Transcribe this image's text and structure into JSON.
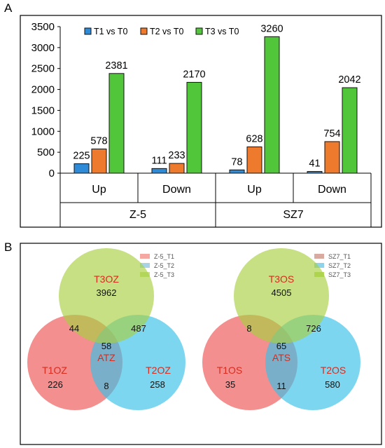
{
  "panel_a": {
    "letter": "A"
  },
  "panel_b": {
    "letter": "B"
  },
  "chart_data": {
    "type": "bar",
    "title": "",
    "xlabel": "",
    "ylabel": "",
    "ylim": [
      0,
      3500
    ],
    "yticks": [
      0,
      500,
      1000,
      1500,
      2000,
      2500,
      3000,
      3500
    ],
    "grid": false,
    "legend_position": "top",
    "categories": [
      "Up",
      "Down",
      "Up",
      "Down"
    ],
    "groups": [
      {
        "label": "Z-5",
        "categories": [
          0,
          1
        ]
      },
      {
        "label": "SZ7",
        "categories": [
          2,
          3
        ]
      }
    ],
    "series": [
      {
        "name": "T1 vs T0",
        "color": "#2e8bd8",
        "values": [
          225,
          111,
          78,
          41
        ]
      },
      {
        "name": "T2 vs T0",
        "color": "#ee7a2e",
        "values": [
          578,
          233,
          628,
          754
        ]
      },
      {
        "name": "T3 vs T0",
        "color": "#52c63a",
        "values": [
          2381,
          2170,
          3260,
          2042
        ]
      }
    ]
  },
  "venn_left": {
    "legend": [
      {
        "name": "Z-5_T1",
        "color": "#f5a7a2"
      },
      {
        "name": "Z-5_T2",
        "color": "#a8d3e7"
      },
      {
        "name": "Z-5_T3",
        "color": "#c6e089"
      }
    ],
    "sets": {
      "top": {
        "label": "T3OZ",
        "value": "3962"
      },
      "left": {
        "label": "T1OZ",
        "value": "226"
      },
      "right": {
        "label": "T2OZ",
        "value": "258"
      }
    },
    "overlaps": {
      "top_left": "44",
      "top_right": "487",
      "left_right": "8",
      "center": "58",
      "center_label": "ATZ"
    }
  },
  "venn_right": {
    "legend": [
      {
        "name": "SZ7_T1",
        "color": "#d9aba0"
      },
      {
        "name": "SZ7_T2",
        "color": "#8fd3ea"
      },
      {
        "name": "SZ7_T3",
        "color": "#b8da6a"
      }
    ],
    "sets": {
      "top": {
        "label": "T3OS",
        "value": "4505"
      },
      "left": {
        "label": "T1OS",
        "value": "35"
      },
      "right": {
        "label": "T2OS",
        "value": "580"
      }
    },
    "overlaps": {
      "top_left": "8",
      "top_right": "726",
      "left_right": "11",
      "center": "65",
      "center_label": "ATS"
    }
  },
  "colors": {
    "venn_red": "#f06060",
    "venn_blue": "#38c0e6",
    "venn_green": "#a8d040",
    "set_label": "#d82b1e"
  }
}
